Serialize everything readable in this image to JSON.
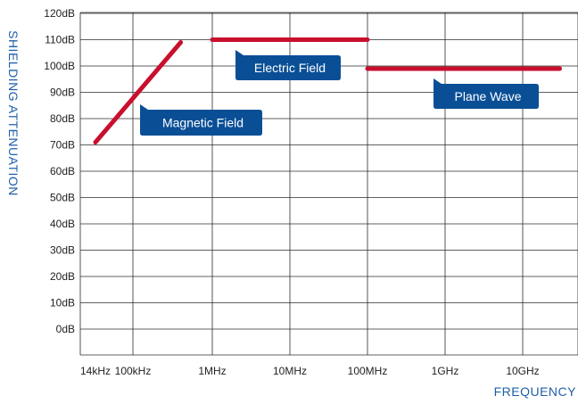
{
  "chart_data": {
    "type": "line",
    "title": "",
    "xlabel": "FREQUENCY",
    "ylabel": "SHIELDING  ATTENUATION",
    "x_scale": "log",
    "x_ticks": [
      {
        "label": "14kHz",
        "value": 14000
      },
      {
        "label": "100kHz",
        "value": 100000
      },
      {
        "label": "1MHz",
        "value": 1000000
      },
      {
        "label": "10MHz",
        "value": 10000000
      },
      {
        "label": "100MHz",
        "value": 100000000
      },
      {
        "label": "1GHz",
        "value": 1000000000
      },
      {
        "label": "10GHz",
        "value": 10000000000
      }
    ],
    "y_ticks": [
      {
        "label": "0dB",
        "value": 0
      },
      {
        "label": "10dB",
        "value": 10
      },
      {
        "label": "20dB",
        "value": 20
      },
      {
        "label": "30dB",
        "value": 30
      },
      {
        "label": "40dB",
        "value": 40
      },
      {
        "label": "50dB",
        "value": 50
      },
      {
        "label": "60dB",
        "value": 60
      },
      {
        "label": "70dB",
        "value": 70
      },
      {
        "label": "80dB",
        "value": 80
      },
      {
        "label": "90dB",
        "value": 90
      },
      {
        "label": "100dB",
        "value": 100
      },
      {
        "label": "110dB",
        "value": 110
      },
      {
        "label": "120dB",
        "value": 120
      }
    ],
    "ylim": [
      0,
      120
    ],
    "grid": true,
    "line_color": "#c8102e",
    "callout_color": "#0a4f96",
    "axis_title_color": "#1f5fa8",
    "series": [
      {
        "name": "Magnetic Field",
        "points": [
          {
            "x": 14000,
            "y": 71
          },
          {
            "x": 400000,
            "y": 109
          }
        ]
      },
      {
        "name": "Electric Field",
        "points": [
          {
            "x": 1000000,
            "y": 110
          },
          {
            "x": 100000000,
            "y": 110
          }
        ]
      },
      {
        "name": "Plane Wave",
        "points": [
          {
            "x": 100000000,
            "y": 99
          },
          {
            "x": 30000000000,
            "y": 99
          }
        ]
      }
    ]
  }
}
